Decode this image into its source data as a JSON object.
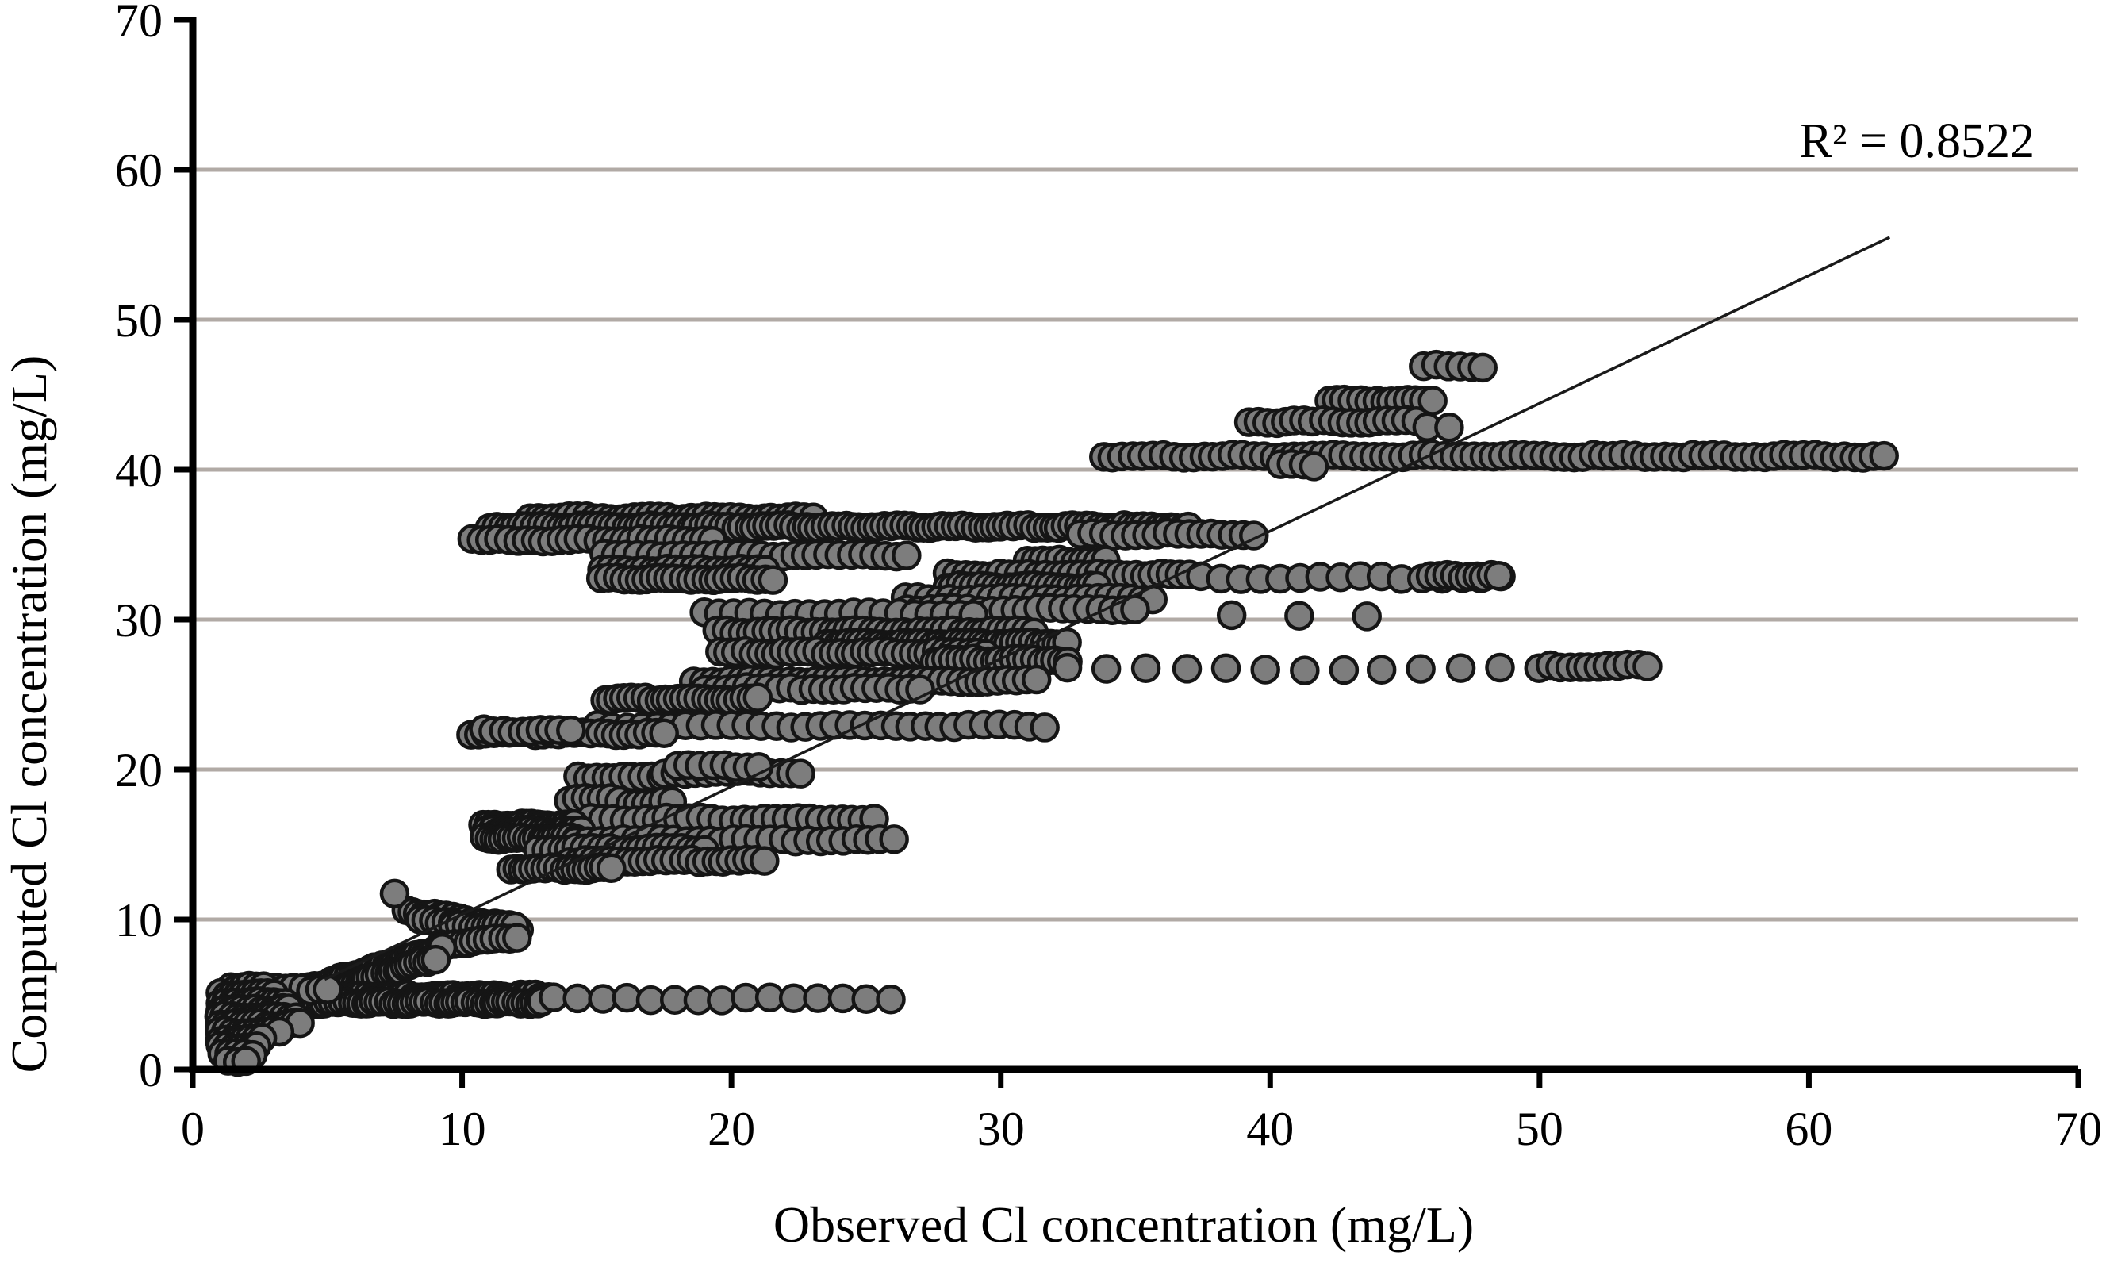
{
  "chart_data": {
    "type": "scatter",
    "title": "",
    "xlabel": "Observed Cl concentration (mg/L)",
    "ylabel": "Computed Cl concentration (mg/L)",
    "annotation": "R² = 0.8522",
    "r_squared": 0.8522,
    "xlim": [
      0,
      70
    ],
    "ylim": [
      0,
      70
    ],
    "xticks": [
      0,
      10,
      20,
      30,
      40,
      50,
      60,
      70
    ],
    "yticks": [
      0,
      10,
      20,
      30,
      40,
      50,
      60,
      70
    ],
    "gridlines_y": [
      10,
      20,
      30,
      40,
      50,
      60
    ],
    "grid": "horizontal",
    "legend": "none",
    "gridline_color": "#b1aaa5",
    "axis_color": "#000000",
    "marker": {
      "fill": "#7d7d7d",
      "stroke": "#151515"
    },
    "trendline": {
      "x1": 4.9,
      "y1": 6.0,
      "x2": 63.0,
      "y2": 55.5,
      "color": "#1a1a1a"
    },
    "point_bands": [
      {
        "y": 46.9,
        "x1": 45.7,
        "x2": 47.9,
        "step": 0.45
      },
      {
        "y": 44.6,
        "x1": 42.2,
        "x2": 46.0,
        "step": 0.3
      },
      {
        "y": 43.2,
        "x1": 39.2,
        "x2": 45.4,
        "step": 0.35
      },
      {
        "y": 42.9,
        "x1": 45.8,
        "x2": 46.6,
        "step": 0.8
      },
      {
        "y": 40.9,
        "x1": 33.8,
        "x2": 62.8,
        "step": 0.37
      },
      {
        "y": 40.3,
        "x1": 40.4,
        "x2": 41.6,
        "step": 0.4
      },
      {
        "y": 36.8,
        "x1": 12.5,
        "x2": 23.0,
        "step": 0.3
      },
      {
        "y": 36.2,
        "x1": 11.0,
        "x2": 37.0,
        "step": 0.24
      },
      {
        "y": 35.7,
        "x1": 33.0,
        "x2": 39.4,
        "step": 0.4
      },
      {
        "y": 35.3,
        "x1": 10.4,
        "x2": 19.3,
        "step": 0.33
      },
      {
        "y": 34.3,
        "x1": 15.3,
        "x2": 26.5,
        "step": 0.42
      },
      {
        "y": 33.9,
        "x1": 31.0,
        "x2": 33.9,
        "step": 0.3
      },
      {
        "y": 33.3,
        "x1": 15.2,
        "x2": 21.3,
        "step": 0.3
      },
      {
        "y": 33.0,
        "x1": 28.0,
        "x2": 37.0,
        "step": 0.33
      },
      {
        "y": 32.8,
        "x1": 37.4,
        "x2": 48.6,
        "step": 0.75
      },
      {
        "y": 32.9,
        "x1": 46.0,
        "x2": 48.5,
        "step": 0.28
      },
      {
        "y": 32.7,
        "x1": 15.2,
        "x2": 21.5,
        "step": 0.28
      },
      {
        "y": 32.2,
        "x1": 28.0,
        "x2": 33.6,
        "step": 0.26
      },
      {
        "y": 31.4,
        "x1": 26.5,
        "x2": 35.6,
        "step": 0.4
      },
      {
        "y": 30.7,
        "x1": 26.5,
        "x2": 35.0,
        "step": 0.45
      },
      {
        "y": 30.4,
        "x1": 19.0,
        "x2": 29.0,
        "step": 0.55
      },
      {
        "y": 30.2,
        "x1": 38.6,
        "x2": 43.6,
        "step": 2.45
      },
      {
        "y": 29.2,
        "x1": 19.5,
        "x2": 31.2,
        "step": 0.3
      },
      {
        "y": 28.4,
        "x1": 23.5,
        "x2": 32.5,
        "step": 0.22
      },
      {
        "y": 27.8,
        "x1": 19.6,
        "x2": 29.4,
        "step": 0.3
      },
      {
        "y": 27.3,
        "x1": 27.5,
        "x2": 32.5,
        "step": 0.25
      },
      {
        "y": 26.7,
        "x1": 32.5,
        "x2": 50.0,
        "step": 1.45
      },
      {
        "y": 26.9,
        "x1": 50.4,
        "x2": 54.0,
        "step": 0.35
      },
      {
        "y": 25.9,
        "x1": 18.6,
        "x2": 31.3,
        "step": 0.35
      },
      {
        "y": 25.4,
        "x1": 19.0,
        "x2": 27.0,
        "step": 0.4
      },
      {
        "y": 24.7,
        "x1": 15.3,
        "x2": 21.0,
        "step": 0.25
      },
      {
        "y": 22.9,
        "x1": 15.0,
        "x2": 31.6,
        "step": 0.55
      },
      {
        "y": 22.4,
        "x1": 10.3,
        "x2": 17.5,
        "step": 0.3
      },
      {
        "y": 22.6,
        "x1": 10.8,
        "x2": 14.0,
        "step": 0.35
      },
      {
        "y": 19.5,
        "x1": 14.3,
        "x2": 17.4,
        "step": 0.33
      },
      {
        "y": 19.8,
        "x1": 17.5,
        "x2": 22.6,
        "step": 0.38
      },
      {
        "y": 20.2,
        "x1": 18.0,
        "x2": 21.0,
        "step": 0.45
      },
      {
        "y": 18.0,
        "x1": 14.0,
        "x2": 15.8,
        "step": 0.3
      },
      {
        "y": 17.8,
        "x1": 16.2,
        "x2": 17.8,
        "step": 0.35
      },
      {
        "y": 16.7,
        "x1": 14.8,
        "x2": 25.3,
        "step": 0.4
      },
      {
        "y": 16.3,
        "x1": 10.8,
        "x2": 14.2,
        "step": 0.18
      },
      {
        "y": 15.9,
        "x1": 10.9,
        "x2": 14.4,
        "step": 0.18
      },
      {
        "y": 15.4,
        "x1": 10.8,
        "x2": 14.2,
        "step": 0.18
      },
      {
        "y": 15.3,
        "x1": 14.2,
        "x2": 26.0,
        "step": 0.45
      },
      {
        "y": 14.7,
        "x1": 12.8,
        "x2": 19.0,
        "step": 0.3
      },
      {
        "y": 13.9,
        "x1": 14.0,
        "x2": 21.2,
        "step": 0.3
      },
      {
        "y": 13.4,
        "x1": 11.8,
        "x2": 15.5,
        "step": 0.22
      },
      {
        "y": 10.6,
        "y2": 9.4,
        "x1": 7.9,
        "x2": 12.1,
        "step": 0.22
      },
      {
        "y": 10.1,
        "y2": 9.0,
        "x1": 8.4,
        "x2": 12.0,
        "step": 0.25
      },
      {
        "y": 9.55,
        "x1": 9.7,
        "x2": 12.0,
        "step": 0.22
      },
      {
        "y": 8.35,
        "y2": 8.8,
        "x1": 9.2,
        "x2": 12.0,
        "step": 0.25
      },
      {
        "y": 4.95,
        "y2": 8.1,
        "x1": 3.5,
        "x2": 9.3,
        "step": 0.14
      },
      {
        "y": 4.5,
        "y2": 7.4,
        "x1": 3.8,
        "x2": 9.0,
        "step": 0.16
      },
      {
        "y": 4.9,
        "x1": 2.4,
        "x2": 13.2,
        "step": 0.17
      },
      {
        "y": 4.45,
        "x1": 3.2,
        "x2": 13.0,
        "step": 0.17
      },
      {
        "y": 4.7,
        "x1": 13.4,
        "x2": 25.9,
        "step": 0.9
      },
      {
        "y": 5.35,
        "x1": 2.2,
        "x2": 5.0,
        "step": 0.3
      },
      {
        "y": 5.5,
        "x1": 1.4,
        "x2": 2.6,
        "step": 0.25
      },
      {
        "y": 5.0,
        "x1": 1.0,
        "x2": 3.0,
        "step": 0.22
      },
      {
        "y": 4.5,
        "x1": 1.0,
        "x2": 3.4,
        "step": 0.22
      },
      {
        "y": 4.0,
        "x1": 1.0,
        "x2": 3.6,
        "step": 0.22
      },
      {
        "y": 3.5,
        "x1": 1.0,
        "x2": 3.8,
        "step": 0.22
      },
      {
        "y": 3.0,
        "x1": 1.0,
        "x2": 4.0,
        "step": 0.22
      },
      {
        "y": 2.5,
        "x1": 1.0,
        "x2": 3.2,
        "step": 0.22
      },
      {
        "y": 2.0,
        "x1": 1.0,
        "x2": 2.6,
        "step": 0.22
      },
      {
        "y": 1.5,
        "x1": 1.0,
        "x2": 2.4,
        "step": 0.22
      },
      {
        "y": 1.0,
        "x1": 1.1,
        "x2": 2.2,
        "step": 0.25
      },
      {
        "y": 0.6,
        "x1": 1.3,
        "x2": 2.0,
        "step": 0.3
      }
    ],
    "extra_points": [
      [
        7.5,
        11.8
      ]
    ]
  }
}
